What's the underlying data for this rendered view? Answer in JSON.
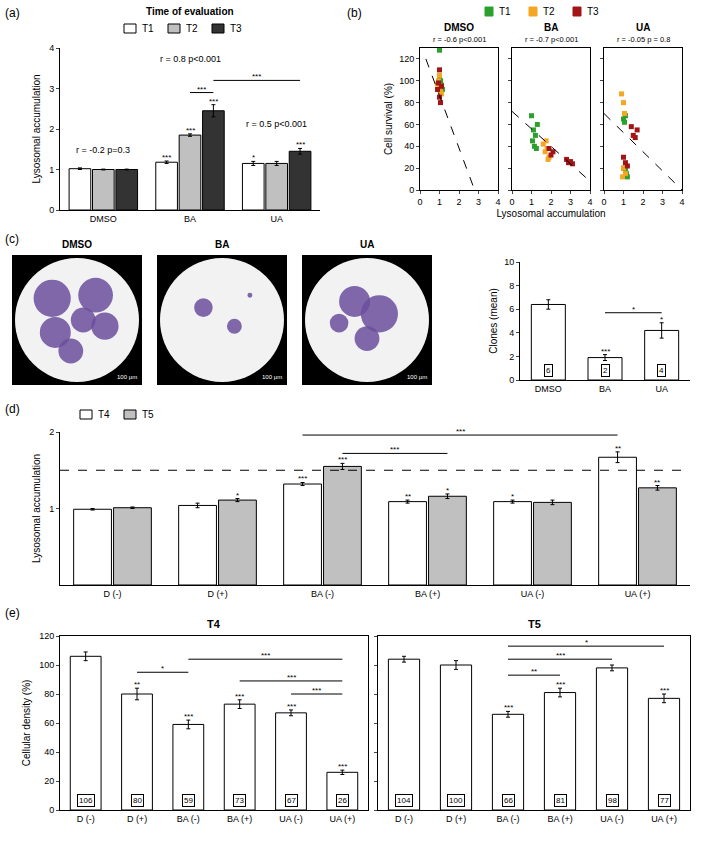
{
  "chart_data": [
    {
      "panel": "(a)",
      "type": "bar",
      "y_label": "Lysosomal accumulation",
      "legend_title": "Time of evaluation",
      "legend": "top",
      "categories": [
        "DMSO",
        "BA",
        "UA"
      ],
      "series": [
        {
          "name": "T1",
          "color": "#ffffff",
          "values": [
            1.02,
            1.18,
            1.15
          ],
          "errors": [
            0.02,
            0.03,
            0.05
          ],
          "stars": [
            null,
            "***",
            "*"
          ]
        },
        {
          "name": "T2",
          "color": "#c0c0c0",
          "values": [
            1.0,
            1.85,
            1.15
          ],
          "errors": [
            0.01,
            0.03,
            0.05
          ],
          "stars": [
            null,
            "***",
            null
          ]
        },
        {
          "name": "T3",
          "color": "#333333",
          "values": [
            1.0,
            2.45,
            1.45
          ],
          "errors": [
            0.01,
            0.15,
            0.07
          ],
          "stars": [
            null,
            "***",
            "***"
          ]
        }
      ],
      "ylim": [
        0,
        4
      ],
      "yticks": [
        0,
        1,
        2,
        3,
        4
      ],
      "brackets": [
        {
          "from": [
            1,
            1
          ],
          "to": [
            1,
            2
          ],
          "text": "***",
          "y": 2.9
        },
        {
          "from": [
            1,
            2
          ],
          "to": [
            2,
            2
          ],
          "text": "***",
          "y": 3.2
        }
      ],
      "annotations": [
        {
          "text": "r = -0.2 p=0.3",
          "x": 0,
          "y": 1.3
        },
        {
          "text": "r = 0.8 p<0.001",
          "x": 1,
          "y": 3.55
        },
        {
          "text": "r = 0.5 p<0.001",
          "x": 2,
          "y": 1.95
        }
      ]
    },
    {
      "panel": "(b)",
      "type": "scatter",
      "marker": "square",
      "legend": "top",
      "x_label": "Lysosomal accumulation",
      "y_label": "Cell survival (%)",
      "series": [
        {
          "name": "T1",
          "color": "#2ca02c"
        },
        {
          "name": "T2",
          "color": "#f5a623"
        },
        {
          "name": "T3",
          "color": "#a31515"
        }
      ],
      "xlim": [
        0,
        4
      ],
      "xticks": [
        0,
        1,
        2,
        3,
        4
      ],
      "ylim": [
        0,
        130
      ],
      "yticks": [
        0,
        20,
        40,
        60,
        80,
        100,
        120
      ],
      "panels": [
        {
          "title": "DMSO",
          "annotation": "r = -0.6 p<0.001",
          "data": [
            {
              "x": [
                1.0,
                1.05,
                1.1,
                1.15,
                1.0,
                0.95
              ],
              "y": [
                128,
                100,
                96,
                92,
                104,
                98
              ]
            },
            {
              "x": [
                0.95,
                1.0,
                1.05,
                1.0,
                1.1,
                0.9
              ],
              "y": [
                100,
                95,
                90,
                105,
                88,
                97
              ]
            },
            {
              "x": [
                0.9,
                0.95,
                1.0,
                1.05,
                1.1,
                1.0
              ],
              "y": [
                92,
                98,
                85,
                80,
                95,
                110
              ]
            }
          ],
          "fit": {
            "x": [
              0.3,
              2.8
            ],
            "y": [
              120,
              0
            ],
            "line_style": "dashed"
          }
        },
        {
          "title": "BA",
          "annotation": "r = -0.7 p<0.001",
          "data": [
            {
              "x": [
                1.0,
                1.1,
                1.2,
                1.05,
                1.15,
                1.25,
                1.3
              ],
              "y": [
                68,
                55,
                50,
                45,
                40,
                38,
                60
              ]
            },
            {
              "x": [
                1.6,
                1.7,
                1.8,
                1.9,
                1.75,
                1.85
              ],
              "y": [
                42,
                35,
                38,
                30,
                45,
                28
              ]
            },
            {
              "x": [
                1.9,
                2.0,
                2.1,
                2.8,
                2.9,
                3.0,
                3.1
              ],
              "y": [
                38,
                32,
                35,
                28,
                25,
                26,
                24
              ]
            }
          ],
          "fit": {
            "x": [
              0,
              4
            ],
            "y": [
              72,
              8
            ],
            "line_style": "dashed"
          }
        },
        {
          "title": "UA",
          "annotation": "r = -0.05 p = 0.8",
          "data": [
            {
              "x": [
                1.0,
                1.05,
                1.1,
                1.0,
                1.15,
                1.2,
                1.1
              ],
              "y": [
                65,
                62,
                68,
                20,
                15,
                12,
                18
              ]
            },
            {
              "x": [
                0.9,
                1.0,
                1.05,
                1.1,
                0.95,
                1.0
              ],
              "y": [
                88,
                80,
                70,
                15,
                12,
                20
              ]
            },
            {
              "x": [
                1.0,
                1.1,
                1.2,
                1.5,
                1.6,
                1.7,
                1.4
              ],
              "y": [
                30,
                25,
                22,
                50,
                48,
                55,
                58
              ]
            }
          ],
          "fit": {
            "x": [
              0,
              4
            ],
            "y": [
              70,
              0
            ],
            "line_style": "dashed"
          }
        }
      ]
    },
    {
      "panel": "(c)",
      "type": "bar",
      "images": [
        {
          "title": "DMSO"
        },
        {
          "title": "BA"
        },
        {
          "title": "UA"
        }
      ],
      "scale_bar": "100 µm",
      "y_label": "Clones (mean)",
      "categories": [
        "DMSO",
        "BA",
        "UA"
      ],
      "color": "#ffffff",
      "values": [
        6.4,
        1.9,
        4.2
      ],
      "value_labels": [
        "6",
        "2",
        "4"
      ],
      "data_labels": true,
      "errors": [
        0.4,
        0.25,
        0.65
      ],
      "stars": [
        null,
        "***",
        "*"
      ],
      "ylim": [
        0,
        10
      ],
      "yticks": [
        0,
        2,
        4,
        6,
        8,
        10
      ],
      "brackets": [
        {
          "from": 1,
          "to": 2,
          "text": "*",
          "y": 5.7
        }
      ]
    },
    {
      "panel": "(d)",
      "type": "bar",
      "y_label": "Lysosomal accumulation",
      "legend": "top-left",
      "categories": [
        "D (-)",
        "D (+)",
        "BA (-)",
        "BA (+)",
        "UA (-)",
        "UA (+)"
      ],
      "series": [
        {
          "name": "T4",
          "color": "#ffffff",
          "values": [
            0.99,
            1.04,
            1.32,
            1.09,
            1.09,
            1.67
          ],
          "errors": [
            0.01,
            0.03,
            0.02,
            0.02,
            0.02,
            0.07
          ],
          "stars": [
            null,
            null,
            "***",
            "**",
            "*",
            "**"
          ]
        },
        {
          "name": "T5",
          "color": "#c0c0c0",
          "values": [
            1.01,
            1.11,
            1.55,
            1.16,
            1.08,
            1.27
          ],
          "errors": [
            0.01,
            0.02,
            0.04,
            0.03,
            0.03,
            0.03
          ],
          "stars": [
            null,
            "*",
            "***",
            "*",
            null,
            "**"
          ]
        }
      ],
      "ylim": [
        0,
        2
      ],
      "yticks": [
        1,
        2
      ],
      "reference_line": 1.5,
      "brackets": [
        {
          "from": [
            2,
            1
          ],
          "to": [
            3,
            1
          ],
          "text": "***",
          "y": 1.72
        },
        {
          "from": [
            2,
            0
          ],
          "to": [
            5,
            0
          ],
          "text": "***",
          "y": 1.96
        }
      ]
    },
    {
      "panel": "(e)",
      "type": "bar",
      "y_label": "Cellular density (%)",
      "color": "#ffffff",
      "data_labels": true,
      "categories": [
        "D (-)",
        "D (+)",
        "BA (-)",
        "BA (+)",
        "UA (-)",
        "UA (+)"
      ],
      "ylim": [
        0,
        120
      ],
      "yticks": [
        0,
        20,
        40,
        60,
        80,
        100,
        120
      ],
      "panels": [
        {
          "title": "T4",
          "values": [
            106,
            80,
            59,
            73,
            67,
            26
          ],
          "errors": [
            3,
            4,
            3,
            3,
            2,
            1.5
          ],
          "stars": [
            null,
            "**",
            "***",
            "***",
            "***",
            "***"
          ],
          "brackets": [
            {
              "from": 1,
              "to": 2,
              "text": "*",
              "y": 95
            },
            {
              "from": 4,
              "to": 5,
              "text": "***",
              "y": 80
            },
            {
              "from": 3,
              "to": 5,
              "text": "***",
              "y": 89
            },
            {
              "from": 2,
              "to": 5,
              "text": "***",
              "y": 104
            }
          ]
        },
        {
          "title": "T5",
          "values": [
            104,
            100,
            66,
            81,
            98,
            77
          ],
          "errors": [
            2,
            3,
            2,
            3,
            2,
            3
          ],
          "stars": [
            null,
            null,
            "***",
            "***",
            null,
            "***"
          ],
          "brackets": [
            {
              "from": 2,
              "to": 3,
              "text": "**",
              "y": 93
            },
            {
              "from": 2,
              "to": 4,
              "text": "***",
              "y": 104
            },
            {
              "from": 2,
              "to": 5,
              "text": "*",
              "y": 113
            }
          ]
        }
      ]
    }
  ]
}
